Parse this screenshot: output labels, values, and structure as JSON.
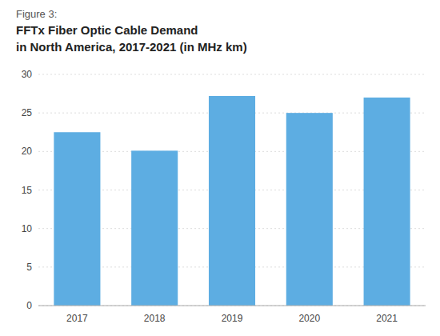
{
  "chart_data": {
    "type": "bar",
    "title": [
      "Figure 3:",
      "FFTx Fiber Optic Cable Demand",
      "in North America, 2017-2021 (in MHz km)"
    ],
    "categories": [
      "2017",
      "2018",
      "2019",
      "2020",
      "2021"
    ],
    "values": [
      22.5,
      20.1,
      27.2,
      25.0,
      27.0
    ],
    "color": "#5DADE2",
    "ylim": [
      0,
      30
    ],
    "yticks": [
      0,
      5,
      10,
      15,
      20,
      25,
      30
    ],
    "grid": true
  }
}
